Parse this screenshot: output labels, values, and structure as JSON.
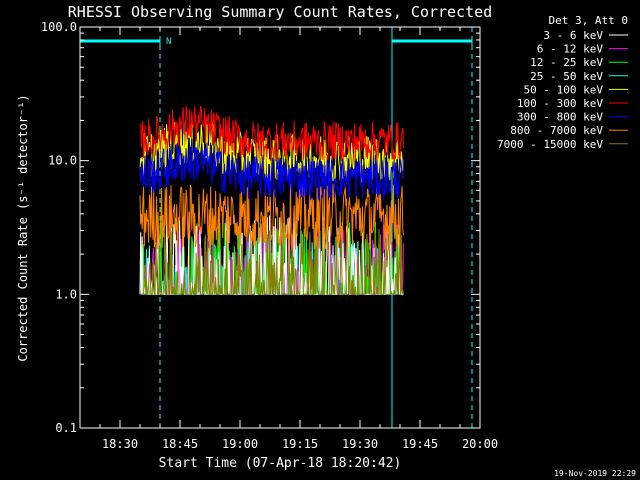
{
  "chart_data": {
    "type": "line",
    "title": "RHESSI Observing Summary Count Rates, Corrected",
    "xlabel": "Start Time (07-Apr-18 18:20:42)",
    "ylabel": "Corrected Count Rate (s⁻¹ detector⁻¹)",
    "y_scale": "log",
    "ylim": [
      0.1,
      100
    ],
    "xlim_minutes_from_1820": [
      0,
      100
    ],
    "y_ticks": [
      "0.1",
      "1.0",
      "10.0",
      "100.0"
    ],
    "x_ticks": [
      "18:30",
      "18:45",
      "19:00",
      "19:15",
      "19:30",
      "19:45",
      "20:00"
    ],
    "legend_header": "Det 3, Att 0",
    "legend_position": "right-outside",
    "date_stamp": "19-Nov-2019 22:29",
    "night_marker_label": "N",
    "night_intervals_hhmm": [
      [
        "18:20",
        "18:40"
      ],
      [
        "19:38",
        "19:58"
      ]
    ],
    "series": [
      {
        "name": "3 - 6 keV",
        "color": "#ffffff",
        "level": 1.8,
        "noise": 0.35
      },
      {
        "name": "6 - 12 keV",
        "color": "#ff00ff",
        "level": 1.5,
        "noise": 0.35
      },
      {
        "name": "12 - 25 keV",
        "color": "#00ff00",
        "level": 1.6,
        "noise": 0.35
      },
      {
        "name": "25 - 50 keV",
        "color": "#00ffff",
        "level": 1.3,
        "noise": 0.3
      },
      {
        "name": "50 - 100 keV",
        "color": "#ffff00",
        "level": 10.5,
        "noise": 0.18
      },
      {
        "name": "100 - 300 keV",
        "color": "#ff0000",
        "level": 14.0,
        "noise": 0.15
      },
      {
        "name": "300 - 800 keV",
        "color": "#0000ff",
        "level": 7.5,
        "noise": 0.17
      },
      {
        "name": "800 - 7000 keV",
        "color": "#ff8000",
        "level": 3.8,
        "noise": 0.25
      },
      {
        "name": "7000 - 15000 keV",
        "color": "#808000",
        "level": 1.6,
        "noise": 0.3
      }
    ],
    "data_range_hhmm": [
      "18:35",
      "19:41"
    ]
  }
}
